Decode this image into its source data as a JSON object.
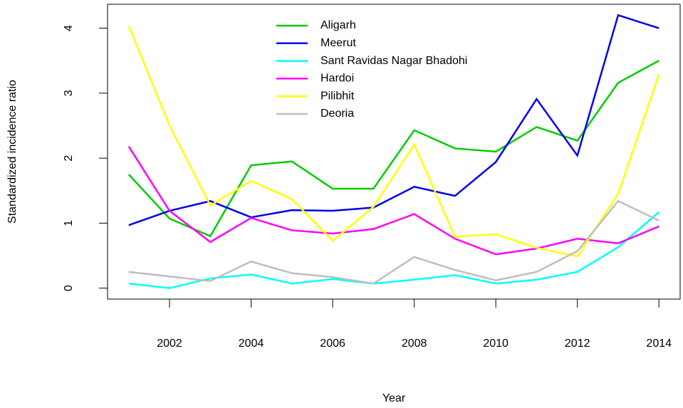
{
  "chart_data": {
    "type": "line",
    "x_label": "Year",
    "y_label": "Standardized incidence ratio",
    "x": [
      2001,
      2002,
      2003,
      2004,
      2005,
      2006,
      2007,
      2008,
      2009,
      2010,
      2011,
      2012,
      2013,
      2014
    ],
    "series": [
      {
        "name": "Aligarh",
        "color": "#00cd00",
        "values": [
          1.75,
          1.07,
          0.8,
          1.89,
          1.95,
          1.53,
          1.53,
          2.43,
          2.15,
          2.1,
          2.48,
          2.27,
          3.16,
          3.5
        ]
      },
      {
        "name": "Meerut",
        "color": "#0000ee",
        "values": [
          0.97,
          1.19,
          1.34,
          1.09,
          1.2,
          1.19,
          1.24,
          1.56,
          1.42,
          1.94,
          2.91,
          2.04,
          4.2,
          4.0
        ]
      },
      {
        "name": "Sant Ravidas Nagar Bhadohi",
        "color": "#00ffff",
        "values": [
          0.07,
          0.0,
          0.15,
          0.21,
          0.07,
          0.14,
          0.07,
          0.13,
          0.2,
          0.07,
          0.13,
          0.25,
          0.63,
          1.17
        ]
      },
      {
        "name": "Hardoi",
        "color": "#ff00ff",
        "values": [
          2.18,
          1.19,
          0.71,
          1.08,
          0.89,
          0.84,
          0.91,
          1.14,
          0.76,
          0.52,
          0.61,
          0.76,
          0.69,
          0.95
        ]
      },
      {
        "name": "Pilibhit",
        "color": "#ffff00",
        "values": [
          4.04,
          2.5,
          1.27,
          1.65,
          1.37,
          0.73,
          1.25,
          2.21,
          0.79,
          0.83,
          0.62,
          0.49,
          1.45,
          3.29
        ]
      },
      {
        "name": "Deoria",
        "color": "#bebebe",
        "values": [
          0.25,
          0.18,
          0.11,
          0.41,
          0.23,
          0.17,
          0.07,
          0.48,
          0.28,
          0.12,
          0.25,
          0.57,
          1.34,
          1.04
        ]
      }
    ],
    "xlim": [
      2000.48,
      2014.52
    ],
    "xticks": [
      2002,
      2004,
      2006,
      2008,
      2010,
      2012,
      2014
    ],
    "ylim": [
      -0.168,
      4.368
    ],
    "yticks": [
      0,
      1,
      2,
      3,
      4
    ],
    "legend": "top"
  }
}
